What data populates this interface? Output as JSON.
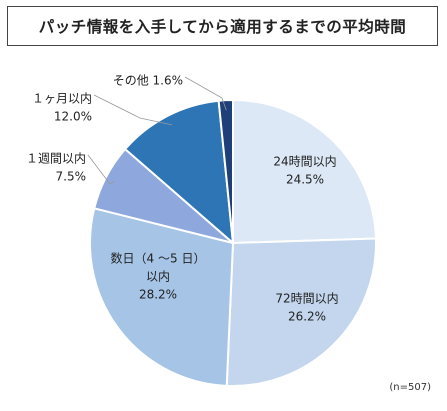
{
  "chart_data": {
    "type": "pie",
    "title": "パッチ情報を入手してから適用するまでの平均時間",
    "note": "(n=507)",
    "slices": [
      {
        "lines": [
          "24時間以内",
          "24.5%"
        ],
        "value": 24.5,
        "color": "#dce8f5"
      },
      {
        "lines": [
          "72時間以内",
          "26.2%"
        ],
        "value": 26.2,
        "color": "#c3d6ee"
      },
      {
        "lines": [
          "数日（4 ～5 日）",
          "以内",
          "28.2%"
        ],
        "value": 28.2,
        "color": "#a5c4e6"
      },
      {
        "lines": [
          "１週間以内",
          "7.5%"
        ],
        "value": 7.5,
        "color": "#8ea8de"
      },
      {
        "lines": [
          "１ヶ月以内",
          "12.0%"
        ],
        "value": 12.0,
        "color": "#2e75b6"
      },
      {
        "lines": [
          "その他  1.6%"
        ],
        "value": 1.6,
        "color": "#1f3f7a"
      }
    ]
  }
}
